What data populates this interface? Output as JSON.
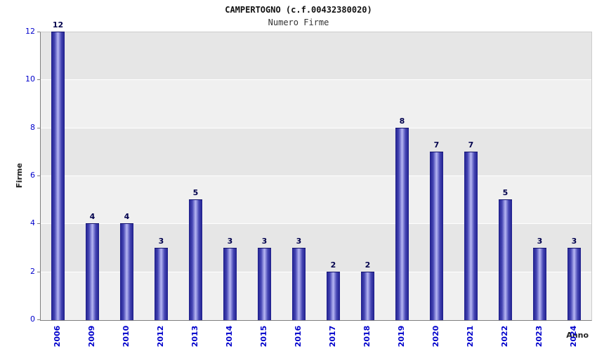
{
  "title": "CAMPERTOGNO (c.f.00432380020)",
  "subtitle": "Numero Firme",
  "chart_data": {
    "type": "bar",
    "title": "CAMPERTOGNO (c.f.00432380020)",
    "subtitle": "Numero Firme",
    "categories": [
      "2006",
      "2009",
      "2010",
      "2012",
      "2013",
      "2014",
      "2015",
      "2016",
      "2017",
      "2018",
      "2019",
      "2020",
      "2021",
      "2022",
      "2023",
      "2024"
    ],
    "values": [
      12,
      4,
      4,
      3,
      5,
      3,
      3,
      3,
      2,
      2,
      8,
      7,
      7,
      5,
      3,
      3
    ],
    "xlabel": "Anno",
    "ylabel": "Firme",
    "ylim": [
      0,
      12
    ],
    "ytick_step": 2,
    "yticks": [
      0,
      2,
      4,
      6,
      8,
      10,
      12
    ],
    "grid": true,
    "legend": false,
    "colors": {
      "bar_edge": "#1e1e8c",
      "bar_center": "#b7b7f4",
      "band_light": "#f0f0f0",
      "band_dark": "#e6e6e6",
      "gridline": "#ffffff",
      "tick_label": "#0000cc",
      "value_label": "#00004d",
      "axis_line": "#7f7f7f"
    }
  }
}
